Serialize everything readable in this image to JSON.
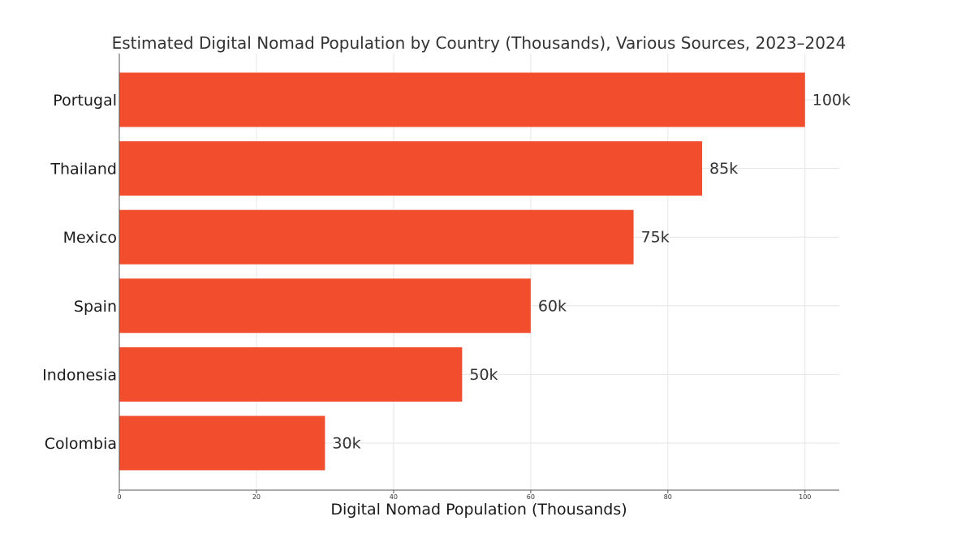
{
  "chart_data": {
    "type": "bar",
    "orientation": "horizontal",
    "title": "Estimated Digital Nomad Population by Country (Thousands), Various Sources, 2023–2024",
    "xlabel": "Digital Nomad Population (Thousands)",
    "ylabel": "",
    "categories": [
      "Portugal",
      "Thailand",
      "Mexico",
      "Spain",
      "Indonesia",
      "Colombia"
    ],
    "values": [
      100,
      85,
      75,
      60,
      50,
      30
    ],
    "data_labels": [
      "100k",
      "85k",
      "75k",
      "60k",
      "50k",
      "30k"
    ],
    "xlim": [
      0,
      105
    ],
    "xticks": [
      0,
      20,
      40,
      60,
      80,
      100
    ],
    "xtick_labels": [
      "0",
      "20",
      "40",
      "60",
      "80",
      "100"
    ],
    "grid": true,
    "legend": "none",
    "bar_color": "#f24e2e"
  }
}
